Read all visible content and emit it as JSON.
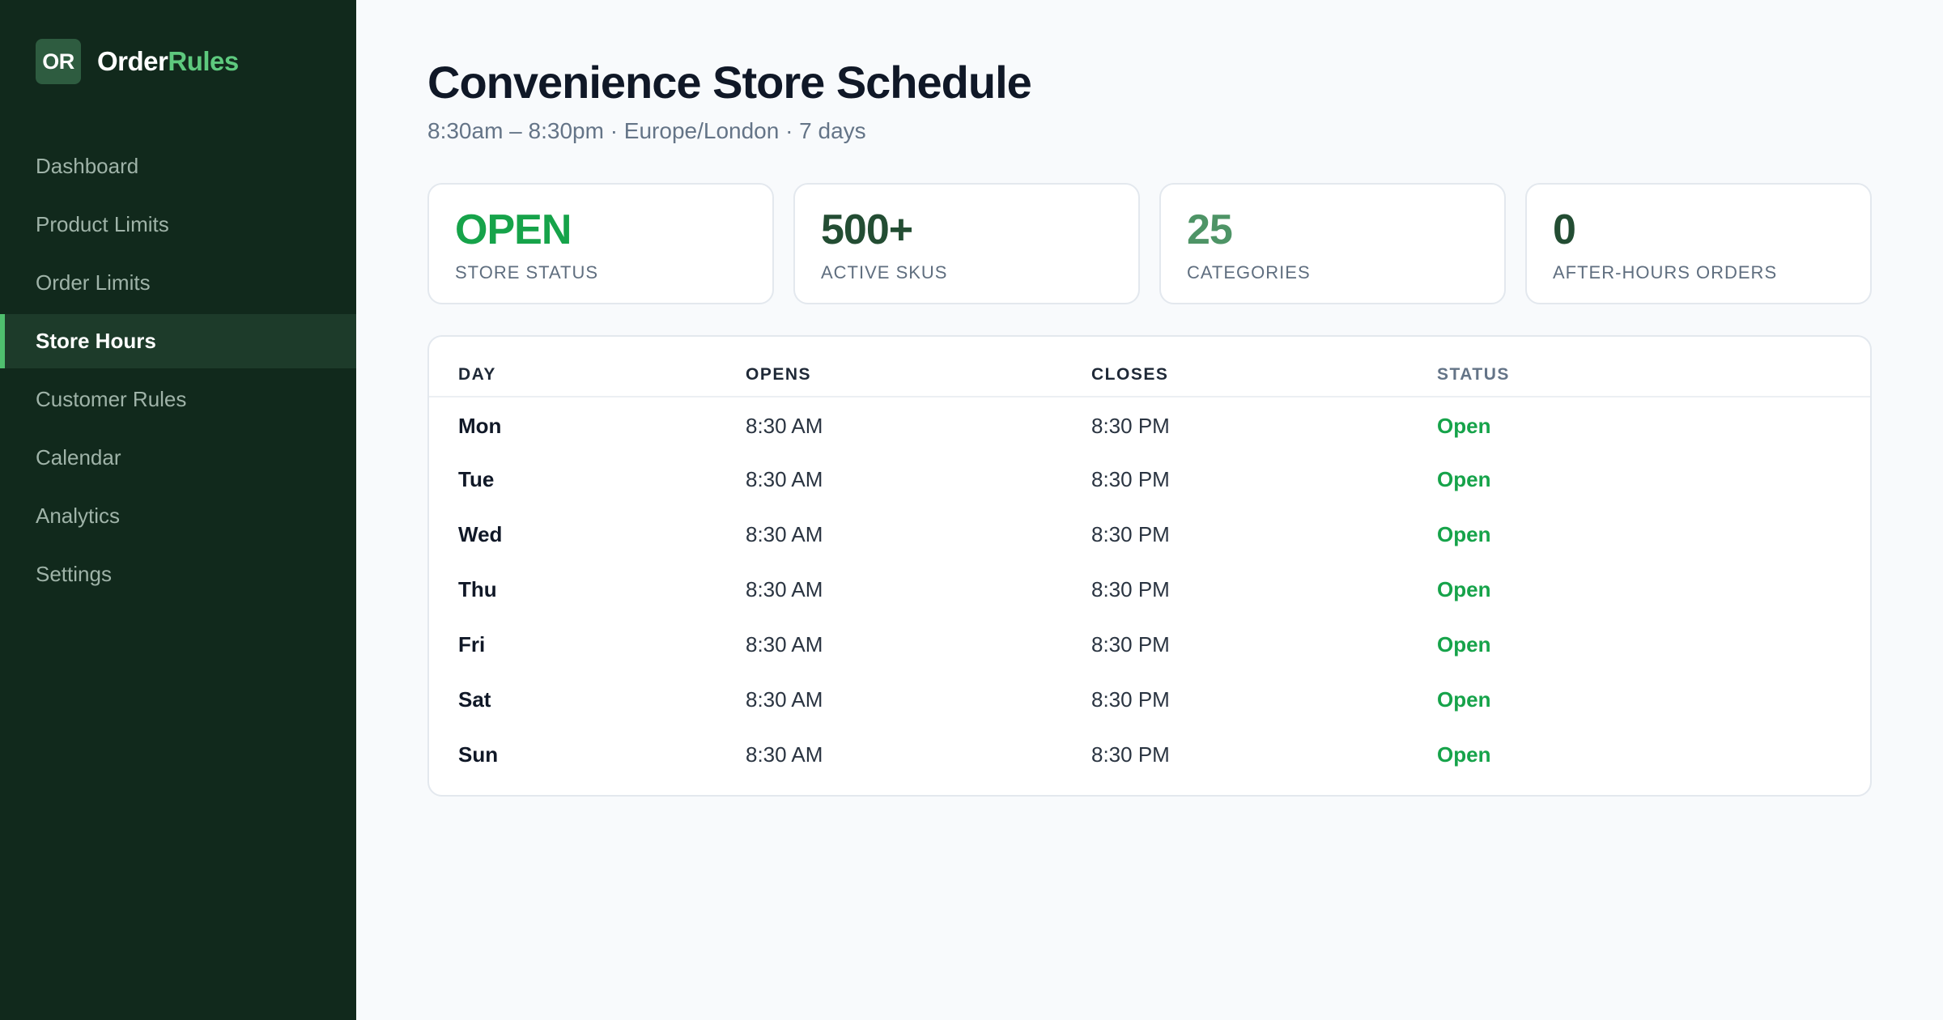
{
  "brand": {
    "mark": "OR",
    "name_main": "Order",
    "name_accent": "Rules"
  },
  "sidebar": {
    "items": [
      {
        "label": "Dashboard"
      },
      {
        "label": "Product Limits"
      },
      {
        "label": "Order Limits"
      },
      {
        "label": "Store Hours",
        "active": true
      },
      {
        "label": "Customer Rules"
      },
      {
        "label": "Calendar"
      },
      {
        "label": "Analytics"
      },
      {
        "label": "Settings"
      }
    ]
  },
  "header": {
    "title": "Convenience Store Schedule",
    "subtitle": "8:30am – 8:30pm · Europe/London · 7 days"
  },
  "stats": [
    {
      "value": "OPEN",
      "label": "Store Status",
      "color": "#16a34a"
    },
    {
      "value": "500+",
      "label": "Active SKUs",
      "color": "#234d33"
    },
    {
      "value": "25",
      "label": "Categories",
      "color": "#4e9466"
    },
    {
      "value": "0",
      "label": "After-Hours Orders",
      "color": "#234d33"
    }
  ],
  "table": {
    "columns": [
      "Day",
      "Opens",
      "Closes",
      "Status"
    ],
    "rows": [
      {
        "day": "Mon",
        "opens": "8:30 AM",
        "closes": "8:30 PM",
        "status": "Open"
      },
      {
        "day": "Tue",
        "opens": "8:30 AM",
        "closes": "8:30 PM",
        "status": "Open"
      },
      {
        "day": "Wed",
        "opens": "8:30 AM",
        "closes": "8:30 PM",
        "status": "Open"
      },
      {
        "day": "Thu",
        "opens": "8:30 AM",
        "closes": "8:30 PM",
        "status": "Open"
      },
      {
        "day": "Fri",
        "opens": "8:30 AM",
        "closes": "8:30 PM",
        "status": "Open"
      },
      {
        "day": "Sat",
        "opens": "8:30 AM",
        "closes": "8:30 PM",
        "status": "Open"
      },
      {
        "day": "Sun",
        "opens": "8:30 AM",
        "closes": "8:30 PM",
        "status": "Open"
      }
    ]
  },
  "colors": {
    "sidebar_bg": "#11291c",
    "accent": "#5ec97e",
    "open_status": "#16a34a"
  }
}
